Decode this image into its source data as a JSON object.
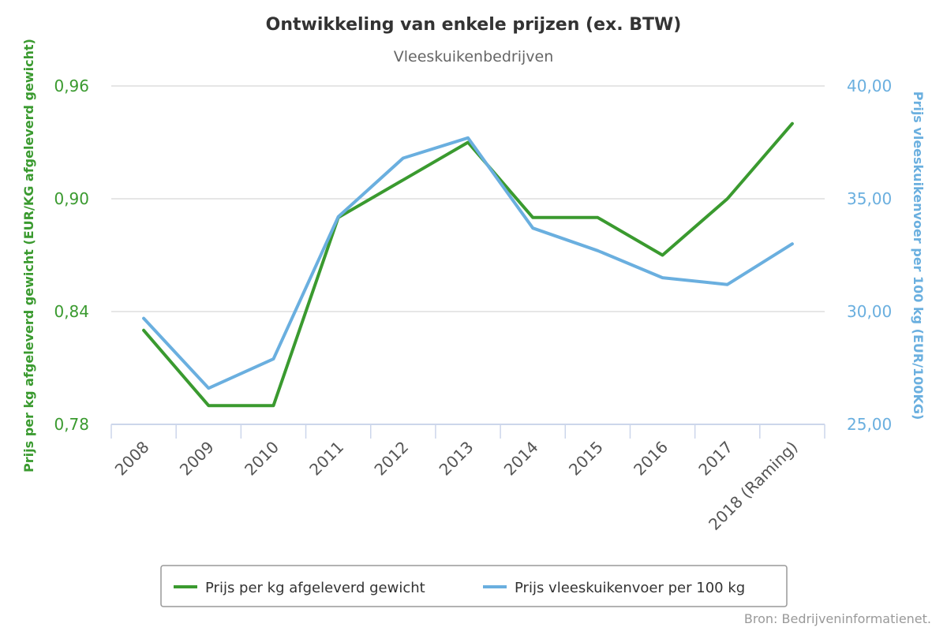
{
  "chart_data": {
    "type": "line",
    "title": "Ontwikkeling van enkele prijzen (ex. BTW)",
    "subtitle": "Vleeskuikenbedrijven",
    "categories": [
      "2008",
      "2009",
      "2010",
      "2011",
      "2012",
      "2013",
      "2014",
      "2015",
      "2016",
      "2017",
      "2018 (Raming)"
    ],
    "y_left": {
      "label": "Prijs per kg afgeleverd gewicht (EUR/KG afgeleverd gewicht)",
      "ylim": [
        0.78,
        0.96
      ],
      "ticks": [
        "0,78",
        "0,84",
        "0,90",
        "0,96"
      ]
    },
    "y_right": {
      "label": "Prijs vleeskuikenvoer per 100 kg (EUR/100KG)",
      "ylim": [
        25,
        40
      ],
      "ticks": [
        "25,00",
        "30,00",
        "35,00",
        "40,00"
      ]
    },
    "series": [
      {
        "name": "Prijs per kg afgeleverd gewicht",
        "axis": "left",
        "color": "#3a9a2f",
        "values": [
          0.83,
          0.79,
          0.79,
          0.89,
          0.91,
          0.93,
          0.89,
          0.89,
          0.87,
          0.9,
          0.94
        ]
      },
      {
        "name": "Prijs vleeskuikenvoer per 100 kg",
        "axis": "right",
        "color": "#6aafdf",
        "values": [
          29.7,
          26.6,
          27.9,
          34.2,
          36.8,
          37.7,
          33.7,
          32.7,
          31.5,
          31.2,
          33.0
        ]
      }
    ],
    "grid": true,
    "legend": "bottom-center"
  },
  "credit": "Bron: Bedrijveninformatienet."
}
